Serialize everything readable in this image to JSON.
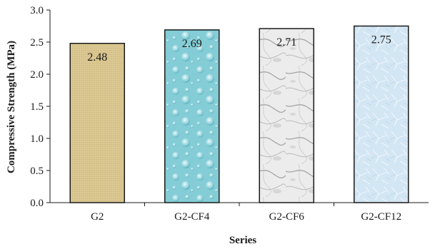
{
  "chart_data": {
    "type": "bar",
    "title": "",
    "xlabel": "Series",
    "ylabel": "Compressive Strength (MPa)",
    "categories": [
      "G2",
      "G2-CF4",
      "G2-CF6",
      "G2-CF12"
    ],
    "values": [
      2.48,
      2.69,
      2.71,
      2.75
    ],
    "data_labels": [
      "2.48",
      "2.69",
      "2.71",
      "2.75"
    ],
    "ylim": [
      0,
      3.0
    ],
    "yticks": [
      "0.0",
      "0.5",
      "1.0",
      "1.5",
      "2.0",
      "2.5",
      "3.0"
    ],
    "grid": false,
    "legend": "none",
    "bar_fills": [
      "#d8c48c",
      "#8fd0d6",
      "#e8e8e8",
      "#cfe4f2"
    ],
    "bar_outline": "#1a1a1a"
  }
}
